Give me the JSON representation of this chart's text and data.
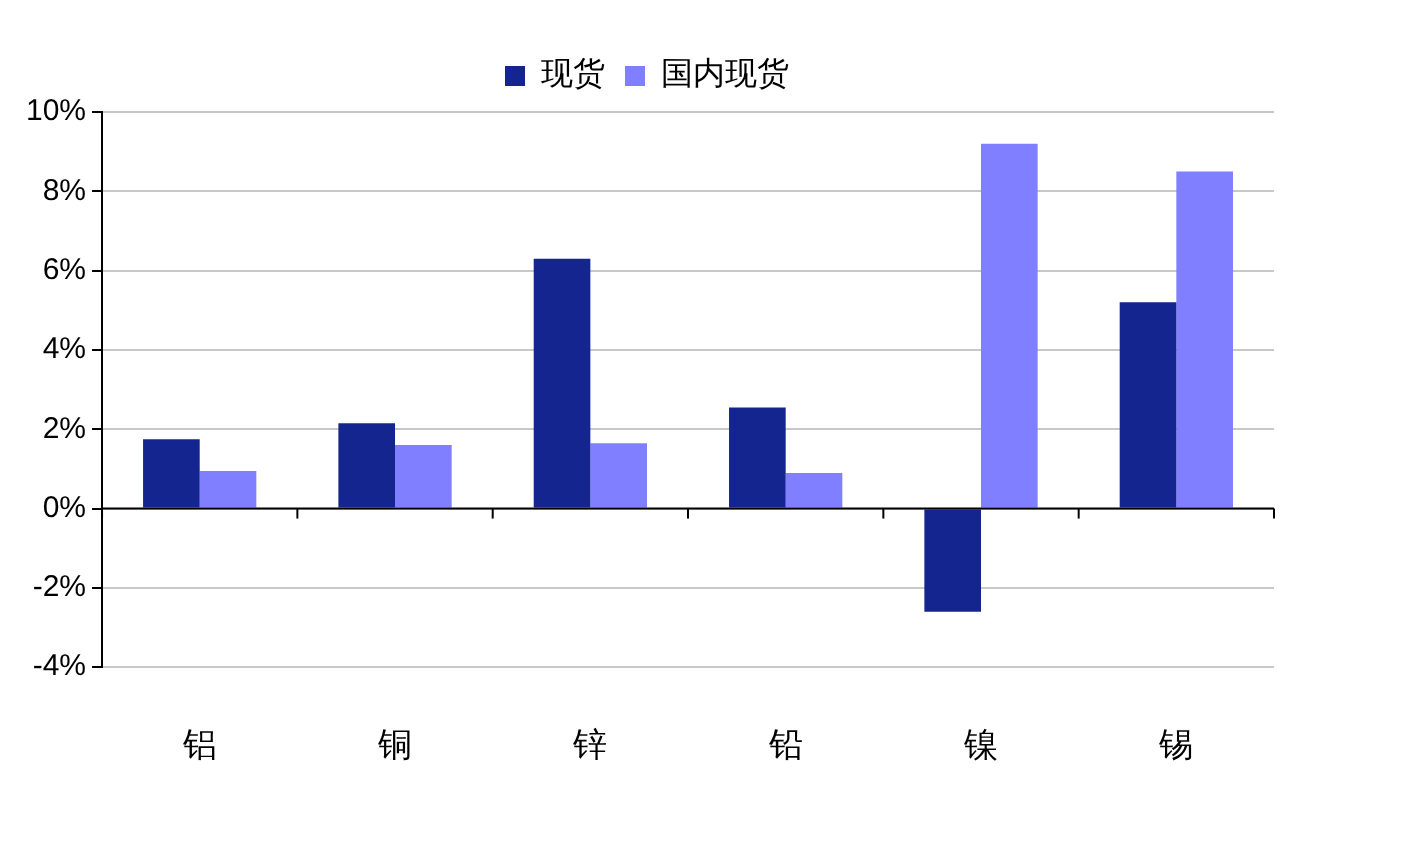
{
  "chart_data": {
    "type": "bar",
    "categories": [
      "铝",
      "铜",
      "锌",
      "铅",
      "镍",
      "锡"
    ],
    "series": [
      {
        "name": "现货",
        "color": "#14258f",
        "values": [
          1.75,
          2.15,
          6.3,
          2.55,
          -2.6,
          5.2
        ]
      },
      {
        "name": "国内现货",
        "color": "#7f7fff",
        "values": [
          0.95,
          1.6,
          1.65,
          0.9,
          9.2,
          8.5
        ]
      }
    ],
    "ylim": [
      -4,
      10
    ],
    "yticks": [
      {
        "value": -4,
        "label": "-4%"
      },
      {
        "value": -2,
        "label": "-2%"
      },
      {
        "value": 0,
        "label": "0%"
      },
      {
        "value": 2,
        "label": "2%"
      },
      {
        "value": 4,
        "label": "4%"
      },
      {
        "value": 6,
        "label": "6%"
      },
      {
        "value": 8,
        "label": "8%"
      },
      {
        "value": 10,
        "label": "10%"
      }
    ],
    "grid": "y",
    "legend": "top"
  }
}
